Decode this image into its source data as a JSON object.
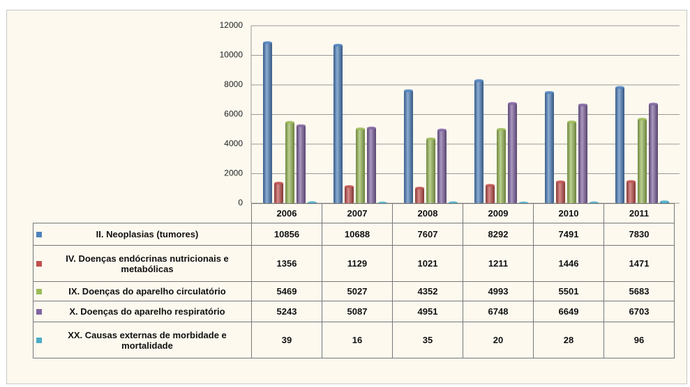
{
  "chart_data": {
    "type": "bar",
    "categories": [
      "2006",
      "2007",
      "2008",
      "2009",
      "2010",
      "2011"
    ],
    "series": [
      {
        "name": "II. Neoplasias (tumores)",
        "color": "#4f81bd",
        "values": [
          10856,
          10688,
          7607,
          8292,
          7491,
          7830
        ]
      },
      {
        "name": "IV. Doenças endócrinas nutricionais e metabólicas",
        "color": "#c0504d",
        "values": [
          1356,
          1129,
          1021,
          1211,
          1446,
          1471
        ]
      },
      {
        "name": "IX. Doenças do aparelho circulatório",
        "color": "#9bbb59",
        "values": [
          5469,
          5027,
          4352,
          4993,
          5501,
          5683
        ]
      },
      {
        "name": "X. Doenças do aparelho respiratório",
        "color": "#8064a2",
        "values": [
          5243,
          5087,
          4951,
          6748,
          6649,
          6703
        ]
      },
      {
        "name": "XX. Causas externas de morbidade e mortalidade",
        "color": "#4bacc6",
        "values": [
          39,
          16,
          35,
          20,
          28,
          96
        ]
      }
    ],
    "ylim": [
      0,
      12000
    ],
    "yticks": [
      0,
      2000,
      4000,
      6000,
      8000,
      10000,
      12000
    ],
    "grid": true
  }
}
